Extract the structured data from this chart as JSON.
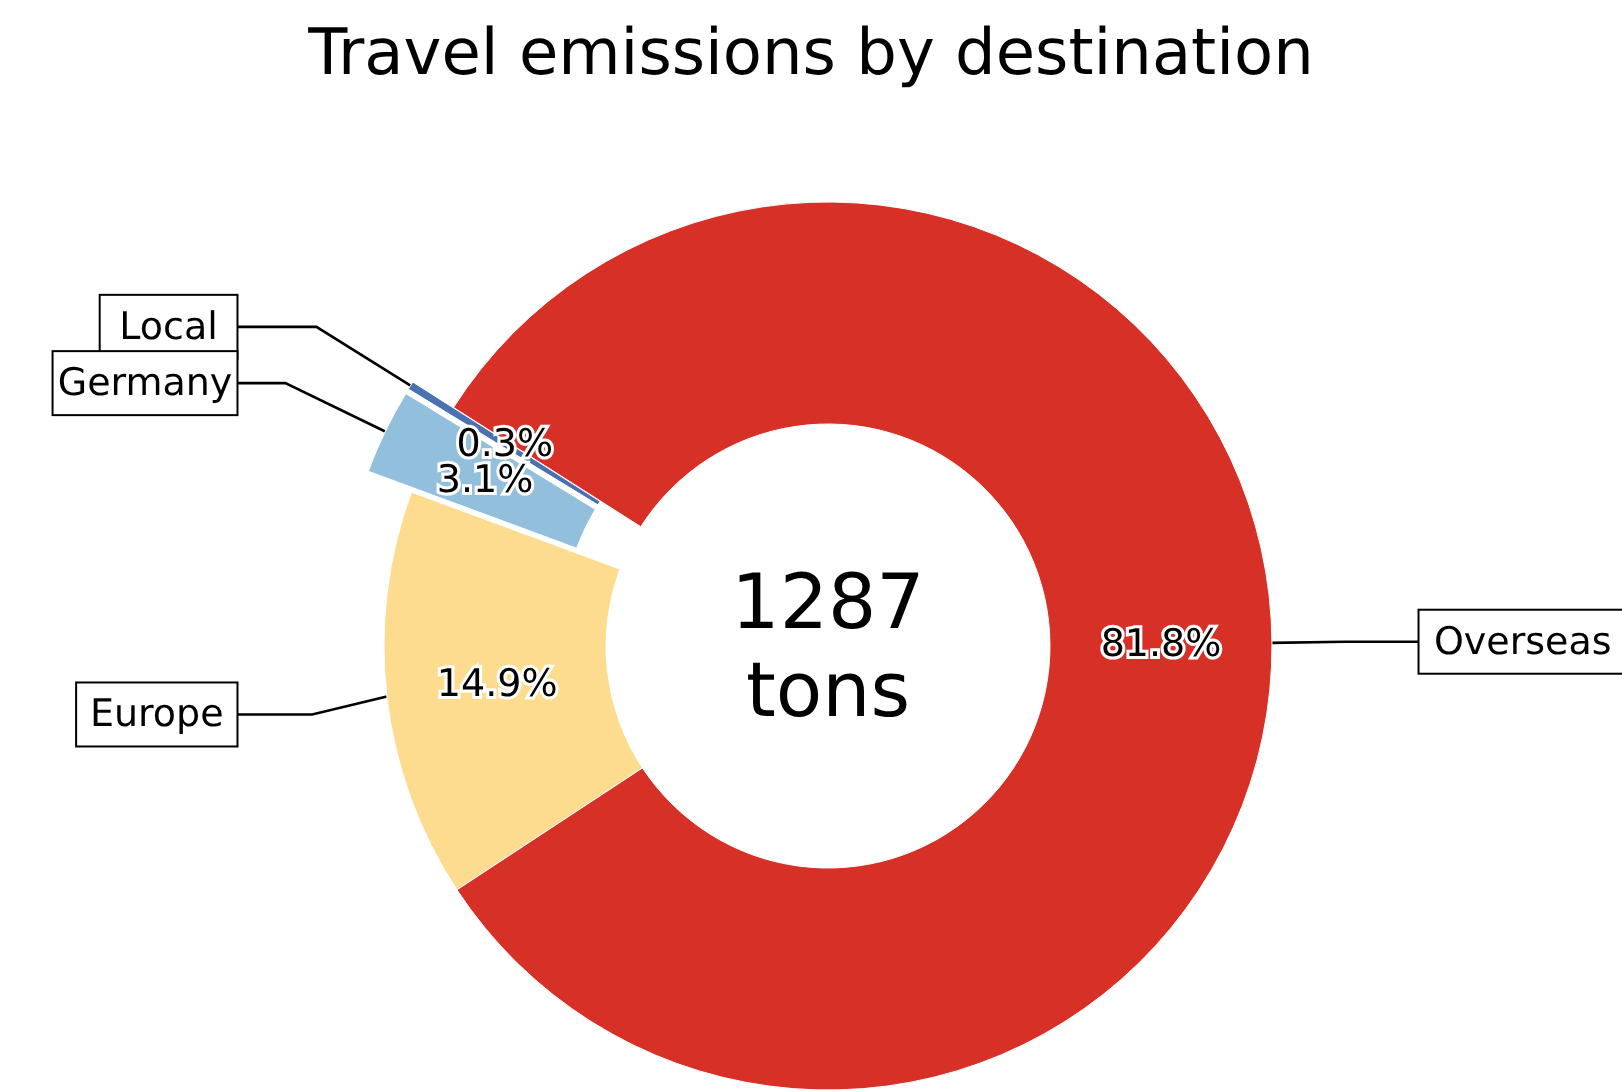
{
  "chart_data": {
    "type": "donut",
    "title": "Travel emissions by destination",
    "categories": [
      "Local",
      "Germany",
      "Europe",
      "Overseas"
    ],
    "values": [
      0.3,
      3.1,
      14.9,
      81.8
    ],
    "colors": [
      "#4a72b0",
      "#92bfdc",
      "#fddc8f",
      "#d73027"
    ],
    "value_labels": [
      "0.3%",
      "3.1%",
      "14.9%",
      "81.8%"
    ],
    "annotations": [
      "1287\ntons"
    ]
  }
}
